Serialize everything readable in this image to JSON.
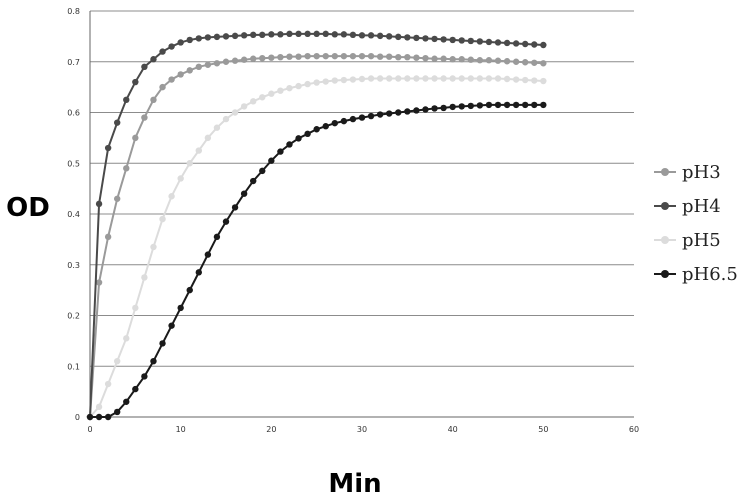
{
  "chart_data": {
    "type": "line",
    "xlabel": "Min",
    "ylabel": "OD",
    "xlim": [
      0,
      60
    ],
    "ylim": [
      0,
      0.8
    ],
    "x_ticks": [
      "0",
      "10",
      "20",
      "30",
      "40",
      "50",
      "60"
    ],
    "y_ticks": [
      "0",
      "0.1",
      "0.2",
      "0.3",
      "0.4",
      "0.5",
      "0.6",
      "0.7",
      "0.8"
    ],
    "grid": "horizontal",
    "legend_position": "right",
    "x": [
      0,
      1,
      2,
      3,
      4,
      5,
      6,
      7,
      8,
      9,
      10,
      11,
      12,
      13,
      14,
      15,
      16,
      17,
      18,
      19,
      20,
      21,
      22,
      23,
      24,
      25,
      26,
      27,
      28,
      29,
      30,
      31,
      32,
      33,
      34,
      35,
      36,
      37,
      38,
      39,
      40,
      41,
      42,
      43,
      44,
      45,
      46,
      47,
      48,
      49,
      50
    ],
    "series": [
      {
        "name": "pH3",
        "color": "#9a9a9a",
        "values": [
          0,
          0.265,
          0.355,
          0.43,
          0.49,
          0.55,
          0.59,
          0.625,
          0.65,
          0.665,
          0.675,
          0.683,
          0.69,
          0.694,
          0.697,
          0.7,
          0.702,
          0.704,
          0.706,
          0.707,
          0.708,
          0.709,
          0.71,
          0.71,
          0.711,
          0.711,
          0.711,
          0.711,
          0.711,
          0.711,
          0.711,
          0.711,
          0.71,
          0.71,
          0.709,
          0.709,
          0.708,
          0.707,
          0.706,
          0.706,
          0.705,
          0.705,
          0.704,
          0.703,
          0.703,
          0.702,
          0.701,
          0.7,
          0.699,
          0.698,
          0.697
        ]
      },
      {
        "name": "pH4",
        "color": "#4a4a4a",
        "values": [
          0,
          0.42,
          0.53,
          0.58,
          0.625,
          0.66,
          0.69,
          0.705,
          0.72,
          0.73,
          0.738,
          0.743,
          0.746,
          0.748,
          0.749,
          0.75,
          0.751,
          0.752,
          0.753,
          0.753,
          0.754,
          0.754,
          0.755,
          0.755,
          0.755,
          0.755,
          0.755,
          0.754,
          0.754,
          0.753,
          0.752,
          0.752,
          0.751,
          0.75,
          0.749,
          0.748,
          0.747,
          0.746,
          0.745,
          0.744,
          0.743,
          0.742,
          0.741,
          0.74,
          0.739,
          0.738,
          0.737,
          0.736,
          0.735,
          0.734,
          0.733
        ]
      },
      {
        "name": "pH5",
        "color": "#dcdcdc",
        "values": [
          0,
          0.02,
          0.065,
          0.11,
          0.155,
          0.215,
          0.275,
          0.335,
          0.39,
          0.435,
          0.47,
          0.5,
          0.525,
          0.55,
          0.57,
          0.587,
          0.6,
          0.612,
          0.622,
          0.63,
          0.637,
          0.643,
          0.648,
          0.652,
          0.656,
          0.659,
          0.661,
          0.663,
          0.664,
          0.665,
          0.666,
          0.667,
          0.667,
          0.667,
          0.667,
          0.667,
          0.667,
          0.667,
          0.667,
          0.667,
          0.667,
          0.667,
          0.667,
          0.667,
          0.667,
          0.667,
          0.666,
          0.665,
          0.664,
          0.663,
          0.662
        ]
      },
      {
        "name": "pH6.5",
        "color": "#1a1a1a",
        "values": [
          0,
          0,
          0,
          0.01,
          0.03,
          0.055,
          0.08,
          0.11,
          0.145,
          0.18,
          0.215,
          0.25,
          0.285,
          0.32,
          0.355,
          0.385,
          0.413,
          0.44,
          0.465,
          0.485,
          0.505,
          0.523,
          0.537,
          0.549,
          0.558,
          0.567,
          0.573,
          0.579,
          0.583,
          0.587,
          0.59,
          0.593,
          0.596,
          0.598,
          0.6,
          0.602,
          0.604,
          0.606,
          0.608,
          0.609,
          0.611,
          0.612,
          0.613,
          0.614,
          0.615,
          0.615,
          0.615,
          0.615,
          0.615,
          0.615,
          0.615
        ]
      }
    ]
  }
}
